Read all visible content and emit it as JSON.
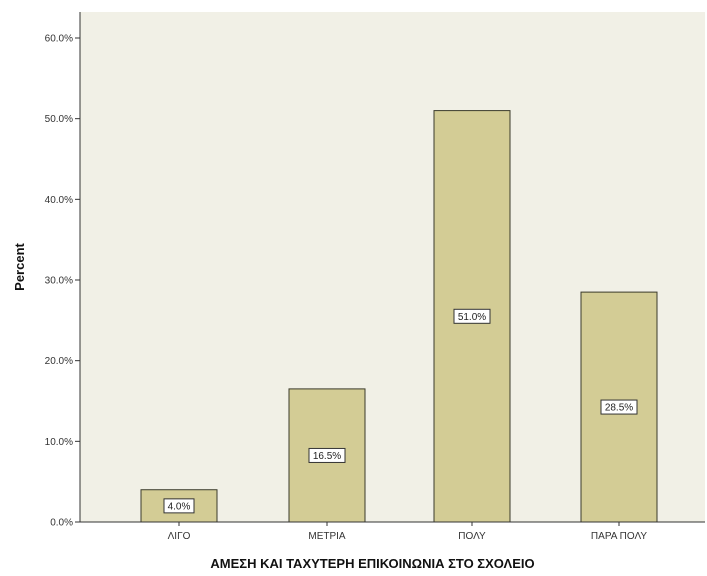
{
  "chart_data": {
    "type": "bar",
    "categories": [
      "ΛΙΓΟ",
      "ΜΕΤΡΙΑ",
      "ΠΟΛΥ",
      "ΠΑΡΑ ΠΟΛΥ"
    ],
    "values": [
      4.0,
      16.5,
      51.0,
      28.5
    ],
    "data_labels": [
      "4.0%",
      "16.5%",
      "51.0%",
      "28.5%"
    ],
    "title": "",
    "xlabel": "ΑΜΕΣΗ ΚΑΙ ΤΑΧΥΤΕΡΗ ΕΠΙΚΟΙΝΩΝΙΑ ΣΤΟ ΣΧΟΛΕΙΟ",
    "ylabel": "Percent",
    "ylim": [
      0,
      60
    ],
    "yticks": [
      0,
      10,
      20,
      30,
      40,
      50,
      60
    ],
    "ytick_labels": [
      "0.0%",
      "10.0%",
      "20.0%",
      "30.0%",
      "40.0%",
      "50.0%",
      "60.0%"
    ],
    "grid": false,
    "legend": "none",
    "colors": {
      "plot_background": "#f1f0e6",
      "bar_fill": "#d3cc95",
      "bar_stroke": "#3a3a2a",
      "label_box_fill": "#ffffff",
      "label_box_stroke": "#333333",
      "axis": "#333333"
    }
  }
}
